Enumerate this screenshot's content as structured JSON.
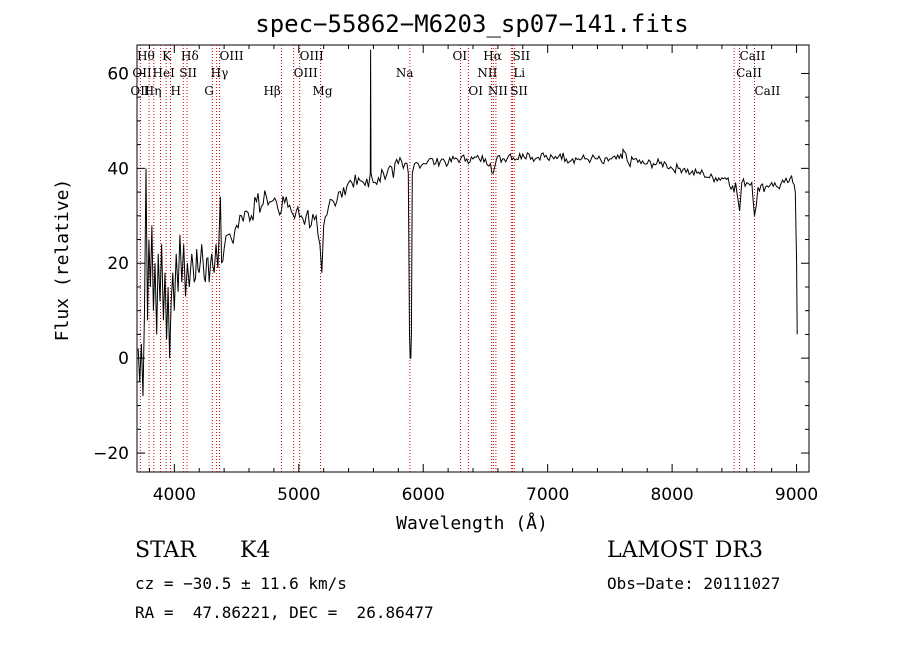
{
  "chart_data": {
    "type": "line",
    "title": "spec−55862−M6203_sp07−141.fits",
    "xlabel": "Wavelength (Å)",
    "ylabel": "Flux (relative)",
    "xlim": [
      3700,
      9100
    ],
    "ylim": [
      -24,
      66
    ],
    "xticks": [
      4000,
      5000,
      6000,
      7000,
      8000,
      9000
    ],
    "yticks": [
      -20,
      0,
      20,
      40,
      60
    ],
    "ytick_labels": [
      "−20",
      "0",
      "20",
      "40",
      "60"
    ],
    "grid": false,
    "series": [
      {
        "name": "spectrum",
        "color": "#000000",
        "points": [
          [
            3710,
            2
          ],
          [
            3722,
            -5
          ],
          [
            3735,
            3
          ],
          [
            3748,
            -8
          ],
          [
            3760,
            10
          ],
          [
            3772,
            40
          ],
          [
            3784,
            8
          ],
          [
            3796,
            25
          ],
          [
            3808,
            15
          ],
          [
            3820,
            28
          ],
          [
            3832,
            10
          ],
          [
            3845,
            20
          ],
          [
            3858,
            5
          ],
          [
            3870,
            22
          ],
          [
            3885,
            12
          ],
          [
            3898,
            24
          ],
          [
            3912,
            8
          ],
          [
            3925,
            18
          ],
          [
            3938,
            4
          ],
          [
            3950,
            15
          ],
          [
            3962,
            0
          ],
          [
            3975,
            12
          ],
          [
            3988,
            18
          ],
          [
            4000,
            10
          ],
          [
            4015,
            22
          ],
          [
            4030,
            14
          ],
          [
            4045,
            26
          ],
          [
            4060,
            16
          ],
          [
            4075,
            24
          ],
          [
            4090,
            13
          ],
          [
            4105,
            20
          ],
          [
            4120,
            15
          ],
          [
            4140,
            22
          ],
          [
            4160,
            16
          ],
          [
            4180,
            23
          ],
          [
            4200,
            18
          ],
          [
            4220,
            24
          ],
          [
            4240,
            17
          ],
          [
            4260,
            21
          ],
          [
            4280,
            16
          ],
          [
            4300,
            22
          ],
          [
            4320,
            18
          ],
          [
            4335,
            24
          ],
          [
            4350,
            19
          ],
          [
            4360,
            26
          ],
          [
            4370,
            34
          ],
          [
            4380,
            20
          ],
          [
            4400,
            23
          ],
          [
            4430,
            26
          ],
          [
            4460,
            25
          ],
          [
            4500,
            28
          ],
          [
            4540,
            30
          ],
          [
            4580,
            31
          ],
          [
            4620,
            30
          ],
          [
            4660,
            33
          ],
          [
            4700,
            32
          ],
          [
            4740,
            34
          ],
          [
            4780,
            33
          ],
          [
            4820,
            33
          ],
          [
            4860,
            31
          ],
          [
            4900,
            34
          ],
          [
            4940,
            31
          ],
          [
            4980,
            31
          ],
          [
            5020,
            30
          ],
          [
            5060,
            30
          ],
          [
            5100,
            28
          ],
          [
            5140,
            30
          ],
          [
            5170,
            24
          ],
          [
            5185,
            18
          ],
          [
            5200,
            28
          ],
          [
            5240,
            32
          ],
          [
            5280,
            33
          ],
          [
            5320,
            35
          ],
          [
            5360,
            36
          ],
          [
            5400,
            37
          ],
          [
            5440,
            36
          ],
          [
            5480,
            38
          ],
          [
            5520,
            37
          ],
          [
            5560,
            36
          ],
          [
            5575,
            39
          ],
          [
            5577,
            65
          ],
          [
            5580,
            39
          ],
          [
            5600,
            37
          ],
          [
            5640,
            38
          ],
          [
            5680,
            39
          ],
          [
            5720,
            40
          ],
          [
            5760,
            38
          ],
          [
            5800,
            41
          ],
          [
            5840,
            40
          ],
          [
            5870,
            41
          ],
          [
            5880,
            39
          ],
          [
            5890,
            5
          ],
          [
            5895,
            0
          ],
          [
            5900,
            0
          ],
          [
            5905,
            5
          ],
          [
            5912,
            39
          ],
          [
            5930,
            41
          ],
          [
            5960,
            41
          ],
          [
            6000,
            41
          ],
          [
            6050,
            42
          ],
          [
            6100,
            41
          ],
          [
            6150,
            42
          ],
          [
            6200,
            41
          ],
          [
            6250,
            42
          ],
          [
            6300,
            42
          ],
          [
            6350,
            42
          ],
          [
            6400,
            42
          ],
          [
            6450,
            42
          ],
          [
            6500,
            42
          ],
          [
            6540,
            41
          ],
          [
            6563,
            39
          ],
          [
            6590,
            42
          ],
          [
            6650,
            42
          ],
          [
            6700,
            43
          ],
          [
            6750,
            42
          ],
          [
            6800,
            43
          ],
          [
            6850,
            43
          ],
          [
            6900,
            42
          ],
          [
            6950,
            43
          ],
          [
            7000,
            42
          ],
          [
            7050,
            42
          ],
          [
            7100,
            43
          ],
          [
            7150,
            42
          ],
          [
            7200,
            42
          ],
          [
            7250,
            42
          ],
          [
            7300,
            42
          ],
          [
            7350,
            42
          ],
          [
            7400,
            42
          ],
          [
            7450,
            41
          ],
          [
            7500,
            42
          ],
          [
            7550,
            42
          ],
          [
            7600,
            42
          ],
          [
            7605,
            44
          ],
          [
            7650,
            41
          ],
          [
            7700,
            42
          ],
          [
            7750,
            41
          ],
          [
            7800,
            41
          ],
          [
            7850,
            41
          ],
          [
            7900,
            41
          ],
          [
            7950,
            41
          ],
          [
            8000,
            40
          ],
          [
            8050,
            40
          ],
          [
            8100,
            40
          ],
          [
            8150,
            39
          ],
          [
            8200,
            39
          ],
          [
            8250,
            39
          ],
          [
            8300,
            38
          ],
          [
            8350,
            38
          ],
          [
            8400,
            38
          ],
          [
            8450,
            38
          ],
          [
            8498,
            35
          ],
          [
            8510,
            37
          ],
          [
            8542,
            31
          ],
          [
            8560,
            37
          ],
          [
            8600,
            37
          ],
          [
            8640,
            37
          ],
          [
            8662,
            30
          ],
          [
            8690,
            36
          ],
          [
            8750,
            36
          ],
          [
            8800,
            37
          ],
          [
            8850,
            36
          ],
          [
            8900,
            37
          ],
          [
            8930,
            37
          ],
          [
            8950,
            38
          ],
          [
            8970,
            37
          ],
          [
            8990,
            35
          ],
          [
            9000,
            20
          ],
          [
            9005,
            5
          ]
        ]
      }
    ],
    "spectral_lines": [
      {
        "label": "O II",
        "wavelength": 3727
      },
      {
        "label": "Hθ",
        "wavelength": 3797
      },
      {
        "label": "Hη",
        "wavelength": 3835
      },
      {
        "label": "K",
        "wavelength": 3934
      },
      {
        "label": "H",
        "wavelength": 3969
      },
      {
        "label": "HeI",
        "wavelength": 3889
      },
      {
        "label": "SII",
        "wavelength": 4072
      },
      {
        "label": "Hδ",
        "wavelength": 4102
      },
      {
        "label": "OIII",
        "wavelength": 4363
      },
      {
        "label": "Hγ",
        "wavelength": 4340
      },
      {
        "label": "G",
        "wavelength": 4305
      },
      {
        "label": "Hβ",
        "wavelength": 4861
      },
      {
        "label": "OIII",
        "wavelength": 4959
      },
      {
        "label": "OIII",
        "wavelength": 5007
      },
      {
        "label": "Mg",
        "wavelength": 5175
      },
      {
        "label": "Na",
        "wavelength": 5893
      },
      {
        "label": "OI",
        "wavelength": 6300
      },
      {
        "label": "OI",
        "wavelength": 6363
      },
      {
        "label": "Hα",
        "wavelength": 6563
      },
      {
        "label": "NII",
        "wavelength": 6548
      },
      {
        "label": "NII",
        "wavelength": 6584
      },
      {
        "label": "SII",
        "wavelength": 6717
      },
      {
        "label": "SII",
        "wavelength": 6731
      },
      {
        "label": "Li",
        "wavelength": 6708
      },
      {
        "label": "CaII",
        "wavelength": 8498
      },
      {
        "label": "CaII",
        "wavelength": 8542
      },
      {
        "label": "CaII",
        "wavelength": 8662
      }
    ],
    "line_label_texts": {
      "row1": [
        "Hθ",
        "K",
        "Hδ",
        "OIII",
        "OIII",
        "OI",
        "Hα",
        "SII",
        "CaII"
      ],
      "row2": [
        "OII",
        "HeI",
        "SII",
        "Hγ",
        "OIII",
        "Na",
        "NII",
        "Li",
        "CaII"
      ],
      "row3": [
        "OII",
        "Hη",
        "H",
        "G",
        "Hβ",
        "Mg",
        "OI",
        "NII",
        "SII",
        "CaII"
      ]
    }
  },
  "info": {
    "object_class": "STAR",
    "subclass": "K4",
    "survey": "LAMOST DR3",
    "cz": "cz = −30.5 ± 11.6 km/s",
    "obs_date": "Obs−Date: 20111027",
    "coords": "RA =  47.86221, DEC =  26.86477"
  }
}
